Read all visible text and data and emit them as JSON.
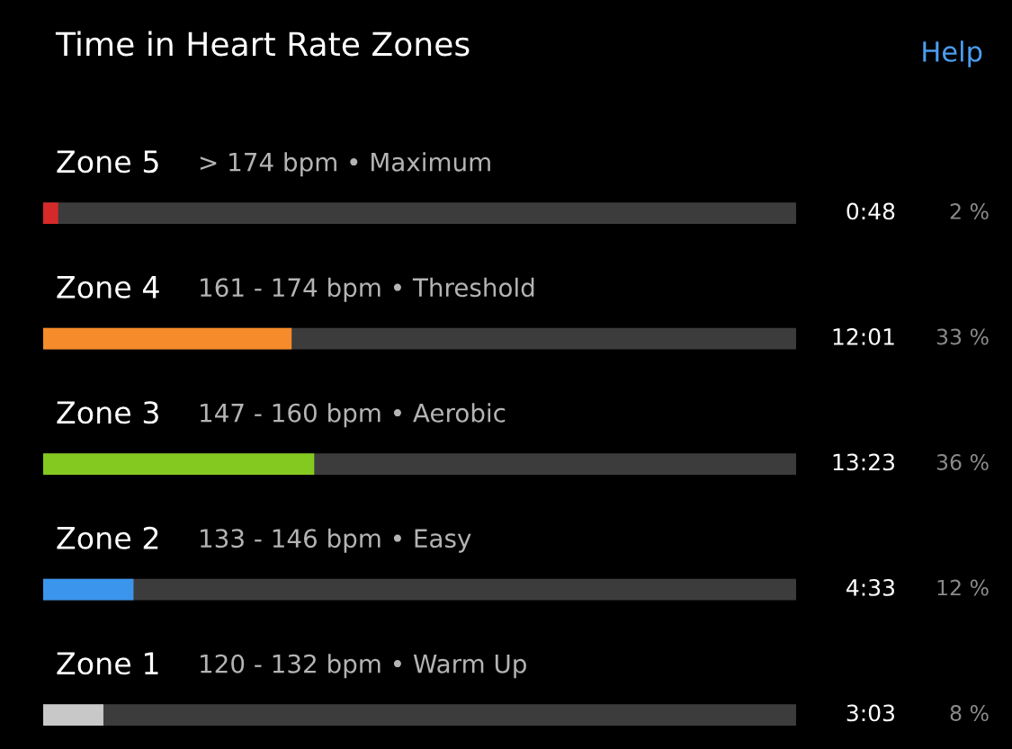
{
  "chart_data": {
    "type": "bar",
    "orientation": "horizontal",
    "title": "Time in Heart Rate Zones",
    "categories": [
      "Zone 5",
      "Zone 4",
      "Zone 3",
      "Zone 2",
      "Zone 1"
    ],
    "values": [
      2,
      33,
      36,
      12,
      8
    ],
    "colors": [
      "#d62a2a",
      "#f68b2b",
      "#84c920",
      "#3b95ec",
      "#c8c8c8"
    ],
    "value_labels": [
      "2 %",
      "33 %",
      "36 %",
      "12 %",
      "8 %"
    ],
    "xlim": [
      0,
      100
    ],
    "annotations": [
      "Help",
      "> 174 bpm • Maximum",
      "0:48",
      "161 - 174 bpm • Threshold",
      "12:01",
      "147 - 160 bpm • Aerobic",
      "13:23",
      "133 - 146 bpm • Easy",
      "4:33",
      "120 - 132 bpm • Warm Up",
      "3:03"
    ]
  }
}
